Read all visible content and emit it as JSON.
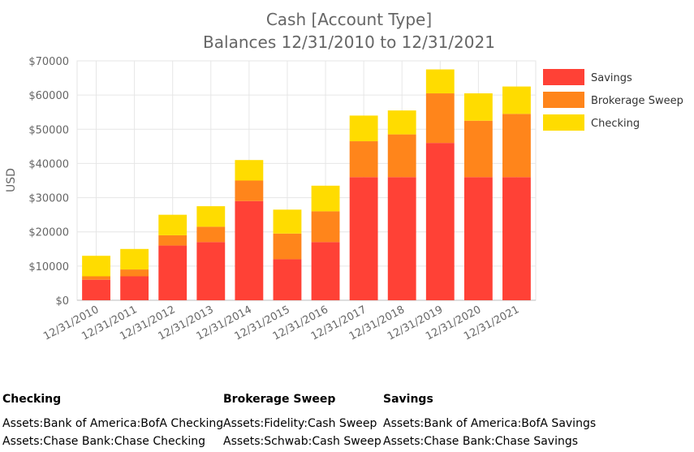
{
  "chart_data": {
    "type": "bar",
    "stacked": true,
    "title": "Cash [Account Type]",
    "subtitle": "Balances 12/31/2010 to 12/31/2021",
    "xlabel": "",
    "ylabel": "USD",
    "ylim": [
      0,
      70000
    ],
    "yticks": [
      0,
      10000,
      20000,
      30000,
      40000,
      50000,
      60000,
      70000
    ],
    "ytick_labels": [
      "$0",
      "$10000",
      "$20000",
      "$30000",
      "$40000",
      "$50000",
      "$60000",
      "$70000"
    ],
    "grid": true,
    "legend_position": "right",
    "categories": [
      "12/31/2010",
      "12/31/2011",
      "12/31/2012",
      "12/31/2013",
      "12/31/2014",
      "12/31/2015",
      "12/31/2016",
      "12/31/2017",
      "12/31/2018",
      "12/31/2019",
      "12/31/2020",
      "12/31/2021"
    ],
    "series": [
      {
        "name": "Savings",
        "color": "#ff4136",
        "values": [
          6000,
          7000,
          16000,
          17000,
          29000,
          12000,
          17000,
          36000,
          36000,
          46000,
          36000,
          36000
        ]
      },
      {
        "name": "Brokerage Sweep",
        "color": "#ff851b",
        "values": [
          1000,
          2000,
          3000,
          4500,
          6000,
          7500,
          9000,
          10500,
          12500,
          14500,
          16500,
          18500
        ]
      },
      {
        "name": "Checking",
        "color": "#ffdc00",
        "values": [
          6000,
          6000,
          6000,
          6000,
          6000,
          7000,
          7500,
          7500,
          7000,
          7000,
          8000,
          8000
        ]
      }
    ]
  },
  "accounts": [
    {
      "title": "Checking",
      "items": [
        "Assets:Bank of America:BofA Checking",
        "Assets:Chase Bank:Chase Checking"
      ]
    },
    {
      "title": "Brokerage Sweep",
      "items": [
        "Assets:Fidelity:Cash Sweep",
        "Assets:Schwab:Cash Sweep"
      ]
    },
    {
      "title": "Savings",
      "items": [
        "Assets:Bank of America:BofA Savings",
        "Assets:Chase Bank:Chase Savings"
      ]
    }
  ]
}
